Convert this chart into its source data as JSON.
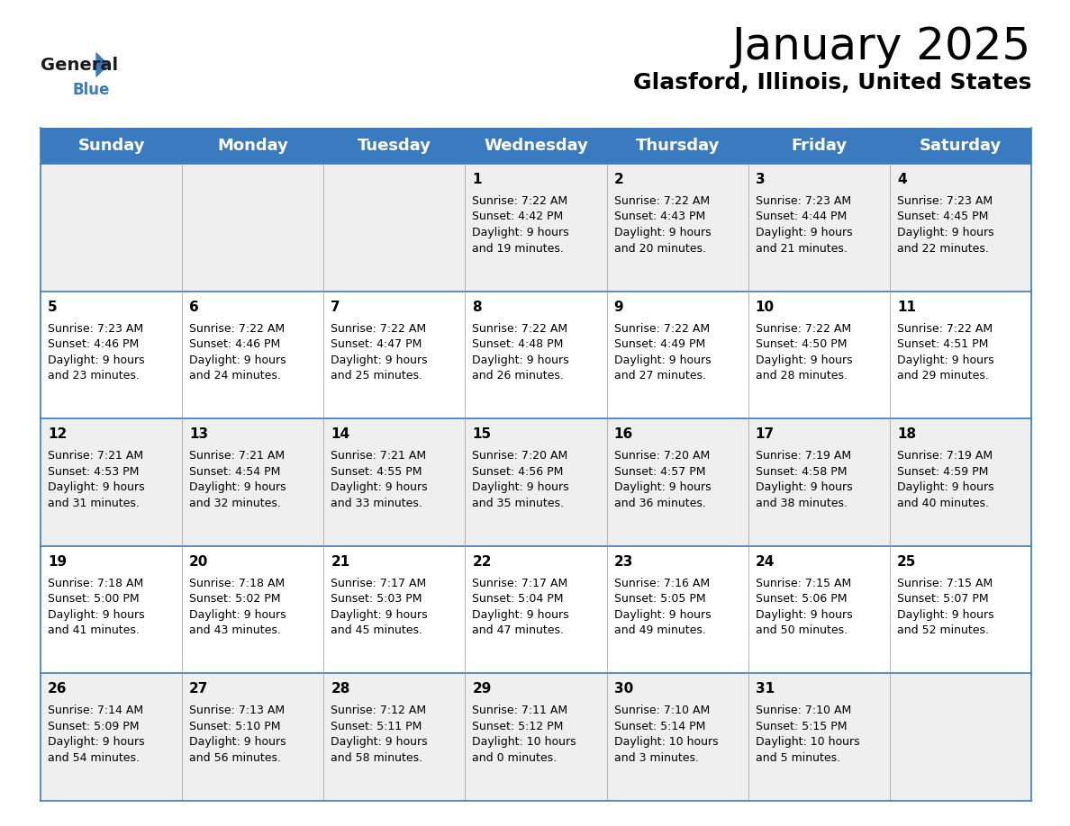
{
  "title": "January 2025",
  "subtitle": "Glasford, Illinois, United States",
  "header_color": "#3a7bbf",
  "header_text_color": "#ffffff",
  "cell_bg_even": "#efefef",
  "cell_bg_odd": "#ffffff",
  "row_border_color": "#3a7bbf",
  "cell_divider_color": "#aaaaaa",
  "text_color": "#000000",
  "days_of_week": [
    "Sunday",
    "Monday",
    "Tuesday",
    "Wednesday",
    "Thursday",
    "Friday",
    "Saturday"
  ],
  "calendar_data": [
    [
      {
        "day": "",
        "sunrise": "",
        "sunset": "",
        "daylight": ""
      },
      {
        "day": "",
        "sunrise": "",
        "sunset": "",
        "daylight": ""
      },
      {
        "day": "",
        "sunrise": "",
        "sunset": "",
        "daylight": ""
      },
      {
        "day": "1",
        "sunrise": "7:22 AM",
        "sunset": "4:42 PM",
        "daylight": "9 hours\nand 19 minutes."
      },
      {
        "day": "2",
        "sunrise": "7:22 AM",
        "sunset": "4:43 PM",
        "daylight": "9 hours\nand 20 minutes."
      },
      {
        "day": "3",
        "sunrise": "7:23 AM",
        "sunset": "4:44 PM",
        "daylight": "9 hours\nand 21 minutes."
      },
      {
        "day": "4",
        "sunrise": "7:23 AM",
        "sunset": "4:45 PM",
        "daylight": "9 hours\nand 22 minutes."
      }
    ],
    [
      {
        "day": "5",
        "sunrise": "7:23 AM",
        "sunset": "4:46 PM",
        "daylight": "9 hours\nand 23 minutes."
      },
      {
        "day": "6",
        "sunrise": "7:22 AM",
        "sunset": "4:46 PM",
        "daylight": "9 hours\nand 24 minutes."
      },
      {
        "day": "7",
        "sunrise": "7:22 AM",
        "sunset": "4:47 PM",
        "daylight": "9 hours\nand 25 minutes."
      },
      {
        "day": "8",
        "sunrise": "7:22 AM",
        "sunset": "4:48 PM",
        "daylight": "9 hours\nand 26 minutes."
      },
      {
        "day": "9",
        "sunrise": "7:22 AM",
        "sunset": "4:49 PM",
        "daylight": "9 hours\nand 27 minutes."
      },
      {
        "day": "10",
        "sunrise": "7:22 AM",
        "sunset": "4:50 PM",
        "daylight": "9 hours\nand 28 minutes."
      },
      {
        "day": "11",
        "sunrise": "7:22 AM",
        "sunset": "4:51 PM",
        "daylight": "9 hours\nand 29 minutes."
      }
    ],
    [
      {
        "day": "12",
        "sunrise": "7:21 AM",
        "sunset": "4:53 PM",
        "daylight": "9 hours\nand 31 minutes."
      },
      {
        "day": "13",
        "sunrise": "7:21 AM",
        "sunset": "4:54 PM",
        "daylight": "9 hours\nand 32 minutes."
      },
      {
        "day": "14",
        "sunrise": "7:21 AM",
        "sunset": "4:55 PM",
        "daylight": "9 hours\nand 33 minutes."
      },
      {
        "day": "15",
        "sunrise": "7:20 AM",
        "sunset": "4:56 PM",
        "daylight": "9 hours\nand 35 minutes."
      },
      {
        "day": "16",
        "sunrise": "7:20 AM",
        "sunset": "4:57 PM",
        "daylight": "9 hours\nand 36 minutes."
      },
      {
        "day": "17",
        "sunrise": "7:19 AM",
        "sunset": "4:58 PM",
        "daylight": "9 hours\nand 38 minutes."
      },
      {
        "day": "18",
        "sunrise": "7:19 AM",
        "sunset": "4:59 PM",
        "daylight": "9 hours\nand 40 minutes."
      }
    ],
    [
      {
        "day": "19",
        "sunrise": "7:18 AM",
        "sunset": "5:00 PM",
        "daylight": "9 hours\nand 41 minutes."
      },
      {
        "day": "20",
        "sunrise": "7:18 AM",
        "sunset": "5:02 PM",
        "daylight": "9 hours\nand 43 minutes."
      },
      {
        "day": "21",
        "sunrise": "7:17 AM",
        "sunset": "5:03 PM",
        "daylight": "9 hours\nand 45 minutes."
      },
      {
        "day": "22",
        "sunrise": "7:17 AM",
        "sunset": "5:04 PM",
        "daylight": "9 hours\nand 47 minutes."
      },
      {
        "day": "23",
        "sunrise": "7:16 AM",
        "sunset": "5:05 PM",
        "daylight": "9 hours\nand 49 minutes."
      },
      {
        "day": "24",
        "sunrise": "7:15 AM",
        "sunset": "5:06 PM",
        "daylight": "9 hours\nand 50 minutes."
      },
      {
        "day": "25",
        "sunrise": "7:15 AM",
        "sunset": "5:07 PM",
        "daylight": "9 hours\nand 52 minutes."
      }
    ],
    [
      {
        "day": "26",
        "sunrise": "7:14 AM",
        "sunset": "5:09 PM",
        "daylight": "9 hours\nand 54 minutes."
      },
      {
        "day": "27",
        "sunrise": "7:13 AM",
        "sunset": "5:10 PM",
        "daylight": "9 hours\nand 56 minutes."
      },
      {
        "day": "28",
        "sunrise": "7:12 AM",
        "sunset": "5:11 PM",
        "daylight": "9 hours\nand 58 minutes."
      },
      {
        "day": "29",
        "sunrise": "7:11 AM",
        "sunset": "5:12 PM",
        "daylight": "10 hours\nand 0 minutes."
      },
      {
        "day": "30",
        "sunrise": "7:10 AM",
        "sunset": "5:14 PM",
        "daylight": "10 hours\nand 3 minutes."
      },
      {
        "day": "31",
        "sunrise": "7:10 AM",
        "sunset": "5:15 PM",
        "daylight": "10 hours\nand 5 minutes."
      },
      {
        "day": "",
        "sunrise": "",
        "sunset": "",
        "daylight": ""
      }
    ]
  ],
  "logo_general_color": "#1a1a1a",
  "logo_blue_color": "#3a7bbf",
  "title_fontsize": 36,
  "subtitle_fontsize": 18,
  "header_fontsize": 13,
  "day_num_fontsize": 11,
  "cell_text_fontsize": 9
}
